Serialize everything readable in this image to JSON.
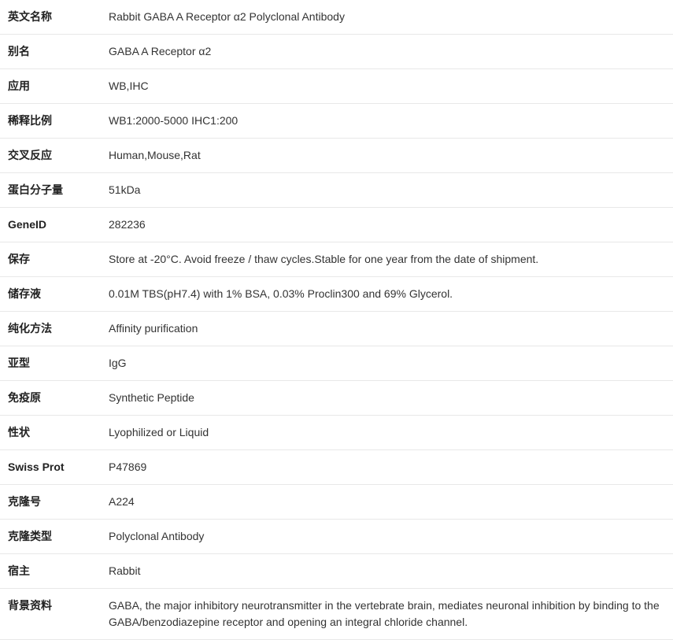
{
  "rows": [
    {
      "label": "英文名称",
      "value": "Rabbit GABA A Receptor α2 Polyclonal Antibody"
    },
    {
      "label": "别名",
      "value": "GABA A Receptor α2"
    },
    {
      "label": "应用",
      "value": "WB,IHC"
    },
    {
      "label": "稀释比例",
      "value": "WB1:2000-5000 IHC1:200"
    },
    {
      "label": "交叉反应",
      "value": "Human,Mouse,Rat"
    },
    {
      "label": "蛋白分子量",
      "value": "51kDa"
    },
    {
      "label": "GeneID",
      "value": "282236"
    },
    {
      "label": "保存",
      "value": "Store at -20°C. Avoid freeze / thaw cycles.Stable for one year from the date of shipment."
    },
    {
      "label": "储存液",
      "value": "0.01M TBS(pH7.4) with 1% BSA, 0.03% Proclin300 and 69% Glycerol."
    },
    {
      "label": "纯化方法",
      "value": "Affinity purification"
    },
    {
      "label": "亚型",
      "value": "IgG"
    },
    {
      "label": "免疫原",
      "value": "Synthetic Peptide"
    },
    {
      "label": "性状",
      "value": "Lyophilized or Liquid"
    },
    {
      "label": "Swiss Prot",
      "value": "P47869"
    },
    {
      "label": "克隆号",
      "value": "A224"
    },
    {
      "label": "克隆类型",
      "value": "Polyclonal Antibody"
    },
    {
      "label": "宿主",
      "value": "Rabbit"
    },
    {
      "label": "背景资料",
      "value": "GABA, the major inhibitory neurotransmitter in the vertebrate brain, mediates neuronal inhibition by binding to the GABA/benzodiazepine receptor and opening an integral chloride channel."
    }
  ]
}
